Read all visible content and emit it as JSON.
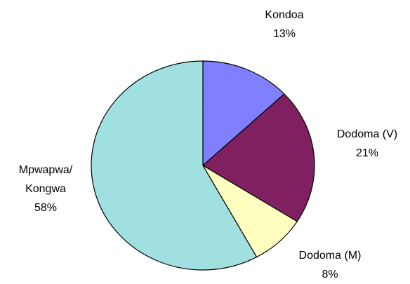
{
  "chart_data": {
    "type": "pie",
    "categories": [
      "Kondoa",
      "Dodoma (V)",
      "Dodoma (M)",
      "Mpwapwa/\nKongwa"
    ],
    "values": [
      13,
      21,
      8,
      58
    ],
    "value_labels": [
      "13%",
      "21%",
      "8%",
      "58%"
    ],
    "colors": [
      "#8080ff",
      "#802060",
      "#ffffc0",
      "#a0e0e0"
    ]
  }
}
